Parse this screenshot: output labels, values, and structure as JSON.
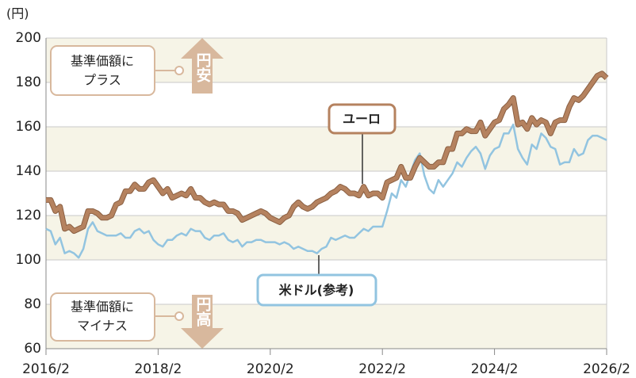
{
  "chart_data": {
    "type": "line",
    "y_unit_label": "(円)",
    "x": [
      "2016/2",
      "2016/3",
      "2016/4",
      "2016/5",
      "2016/6",
      "2016/7",
      "2016/8",
      "2016/9",
      "2016/10",
      "2016/11",
      "2016/12",
      "2017/1",
      "2017/2",
      "2017/3",
      "2017/4",
      "2017/5",
      "2017/6",
      "2017/7",
      "2017/8",
      "2017/9",
      "2017/10",
      "2017/11",
      "2017/12",
      "2018/1",
      "2018/2",
      "2018/3",
      "2018/4",
      "2018/5",
      "2018/6",
      "2018/7",
      "2018/8",
      "2018/9",
      "2018/10",
      "2018/11",
      "2018/12",
      "2019/1",
      "2019/2",
      "2019/3",
      "2019/4",
      "2019/5",
      "2019/6",
      "2019/7",
      "2019/8",
      "2019/9",
      "2019/10",
      "2019/11",
      "2019/12",
      "2020/1",
      "2020/2",
      "2020/3",
      "2020/4",
      "2020/5",
      "2020/6",
      "2020/7",
      "2020/8",
      "2020/9",
      "2020/10",
      "2020/11",
      "2020/12",
      "2021/1",
      "2021/2",
      "2021/3",
      "2021/4",
      "2021/5",
      "2021/6",
      "2021/7",
      "2021/8",
      "2021/9",
      "2021/10",
      "2021/11",
      "2021/12",
      "2022/1",
      "2022/2",
      "2022/3",
      "2022/4",
      "2022/5",
      "2022/6",
      "2022/7",
      "2022/8",
      "2022/9",
      "2022/10",
      "2022/11",
      "2022/12",
      "2023/1",
      "2023/2",
      "2023/3",
      "2023/4",
      "2023/5",
      "2023/6",
      "2023/7",
      "2023/8",
      "2023/9",
      "2023/10",
      "2023/11",
      "2023/12",
      "2024/1",
      "2024/2",
      "2024/3",
      "2024/4",
      "2024/5",
      "2024/6",
      "2024/7",
      "2024/8",
      "2024/9",
      "2024/10",
      "2024/11",
      "2024/12",
      "2025/1",
      "2025/2",
      "2025/3",
      "2025/4",
      "2025/5",
      "2025/6",
      "2025/7",
      "2025/8",
      "2025/9",
      "2025/10",
      "2025/11",
      "2025/12",
      "2026/1",
      "2026/2"
    ],
    "series": [
      {
        "name": "ユーロ",
        "color": "#b5825f",
        "values": [
          127,
          127,
          122,
          124,
          114,
          115,
          113,
          114,
          115,
          122,
          122,
          121,
          119,
          119,
          120,
          125,
          126,
          131,
          131,
          134,
          132,
          132,
          135,
          136,
          133,
          130,
          132,
          128,
          129,
          130,
          129,
          132,
          128,
          128,
          126,
          125,
          126,
          125,
          125,
          122,
          122,
          121,
          118,
          119,
          120,
          121,
          122,
          121,
          119,
          118,
          117,
          119,
          120,
          124,
          126,
          124,
          123,
          124,
          126,
          127,
          128,
          130,
          131,
          133,
          132,
          130,
          130,
          129,
          133,
          129,
          130,
          130,
          128,
          135,
          136,
          137,
          142,
          137,
          137,
          142,
          146,
          144,
          142,
          142,
          144,
          144,
          150,
          150,
          157,
          157,
          159,
          158,
          158,
          162,
          156,
          159,
          162,
          163,
          168,
          170,
          173,
          161,
          162,
          159,
          164,
          161,
          163,
          162,
          157,
          162,
          163,
          163,
          169,
          173,
          172,
          174,
          177,
          180,
          183,
          184,
          182
        ]
      },
      {
        "name": "米ドル(参考)",
        "color": "#92c4e0",
        "values": [
          114,
          113,
          107,
          110,
          103,
          104,
          103,
          101,
          105,
          114,
          117,
          113,
          112,
          111,
          111,
          111,
          112,
          110,
          110,
          113,
          114,
          112,
          113,
          109,
          107,
          106,
          109,
          109,
          111,
          112,
          111,
          114,
          113,
          113,
          110,
          109,
          111,
          111,
          112,
          109,
          108,
          109,
          106,
          108,
          108,
          109,
          109,
          108,
          108,
          108,
          107,
          108,
          107,
          105,
          106,
          105,
          104,
          104,
          103,
          105,
          106,
          110,
          109,
          110,
          111,
          110,
          110,
          112,
          114,
          113,
          115,
          115,
          115,
          122,
          130,
          128,
          136,
          133,
          139,
          145,
          148,
          138,
          132,
          130,
          136,
          133,
          136,
          139,
          144,
          142,
          146,
          149,
          151,
          148,
          141,
          147,
          150,
          151,
          157,
          157,
          161,
          150,
          146,
          143,
          152,
          150,
          157,
          155,
          151,
          150,
          143,
          144,
          144,
          150,
          147,
          148,
          154,
          156,
          156,
          155,
          154
        ]
      }
    ],
    "ylim": [
      60,
      200
    ],
    "yticks": [
      60,
      80,
      100,
      120,
      140,
      160,
      180,
      200
    ],
    "xticks": [
      "2016/2",
      "2018/2",
      "2020/2",
      "2022/2",
      "2024/2",
      "2026/2"
    ],
    "grid": true,
    "plus_label": [
      "基準価額に",
      "プラス"
    ],
    "yen_weak": "円安",
    "minus_label": [
      "基準価額に",
      "マイナス"
    ],
    "yen_strong": "円高"
  }
}
